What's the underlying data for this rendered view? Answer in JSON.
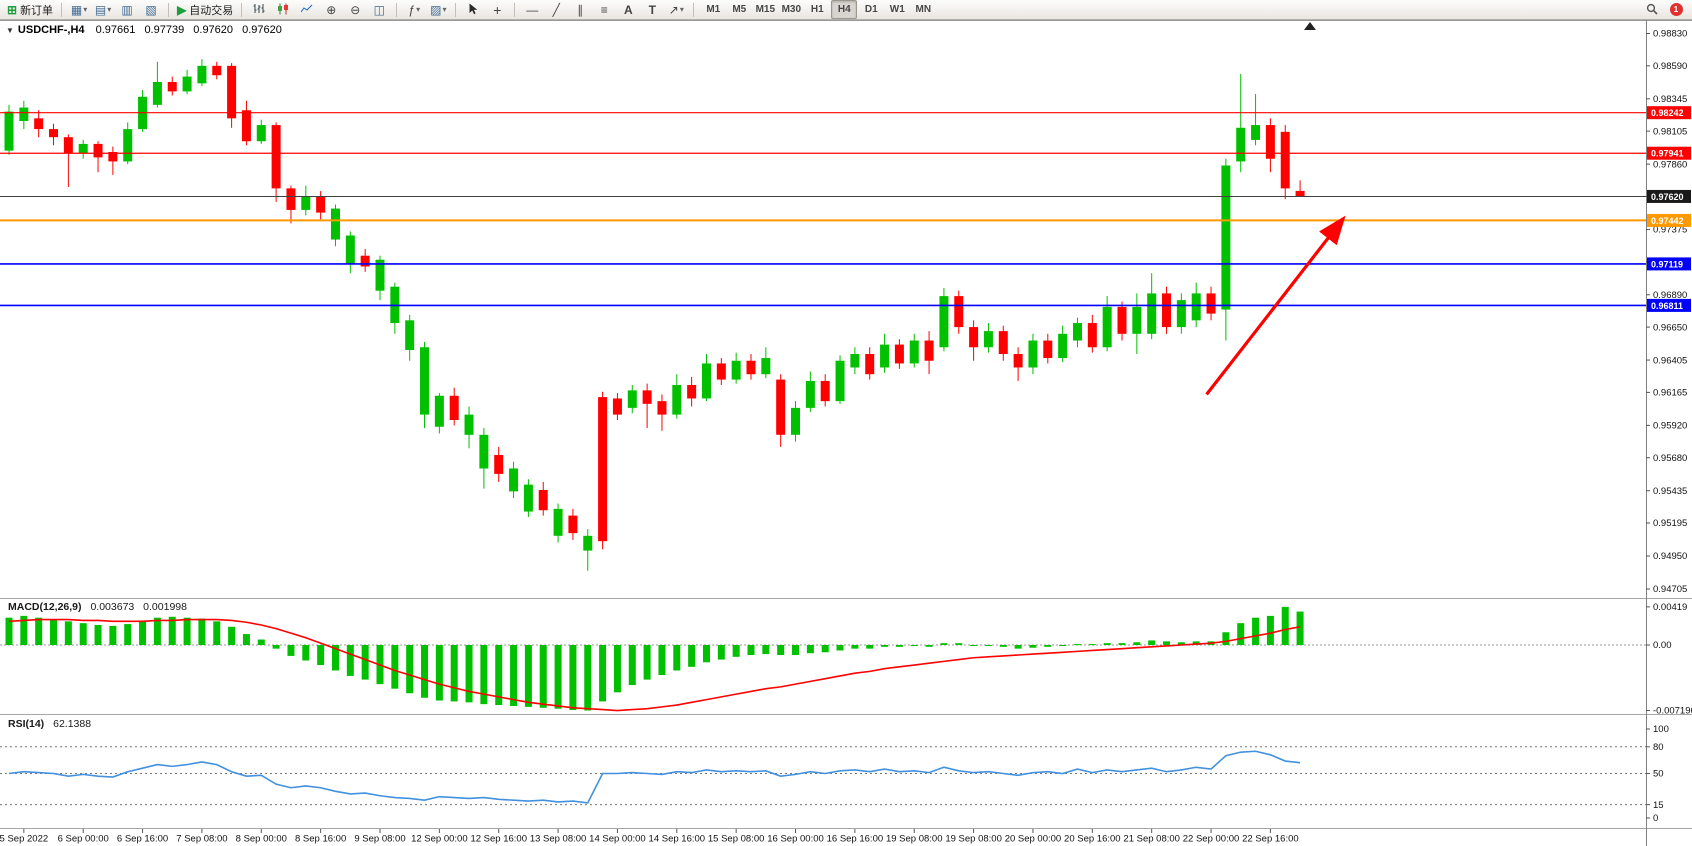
{
  "toolbar": {
    "new_order_label": "新订单",
    "autotrading_label": "自动交易",
    "timeframes": [
      "M1",
      "M5",
      "M15",
      "M30",
      "H1",
      "H4",
      "D1",
      "W1",
      "MN"
    ],
    "active_timeframe": "H4",
    "notification_count": "1"
  },
  "chart": {
    "title": "USDCHF-,H4",
    "ohlc": {
      "open": "0.97661",
      "high": "0.97739",
      "low": "0.97620",
      "close": "0.97620"
    }
  },
  "indicators": {
    "macd": {
      "label": "MACD(12,26,9)",
      "value_main": "0.003673",
      "value_signal": "0.001998"
    },
    "rsi": {
      "label": "RSI(14)",
      "value": "62.1388"
    }
  },
  "colors": {
    "candle_up": "#00C000",
    "candle_down": "#FF0000",
    "macd_histogram": "#00C000",
    "macd_signal": "#FF0000",
    "rsi_line": "#4191DF",
    "arrow": "#FF0000",
    "level_red": "#FF0000",
    "level_orange": "#FF9900",
    "level_blue": "#0000FF",
    "current_price_line": "#404040"
  },
  "chart_data": {
    "type": "candlestick",
    "symbol": "USDCHF-",
    "period": "H4",
    "price_axis": {
      "max": 0.9883,
      "min": 0.94705,
      "labels": [
        "0.98830",
        "0.98590",
        "0.98345",
        "0.98105",
        "0.97860",
        "0.97620",
        "0.97375",
        "0.97135",
        "0.96890",
        "0.96650",
        "0.96405",
        "0.96165",
        "0.95920",
        "0.95680",
        "0.95435",
        "0.95195",
        "0.94950",
        "0.94705"
      ]
    },
    "time_axis": {
      "first_label_bar_index": 1,
      "label_every_n_bars": 4,
      "labels": [
        "5 Sep 2022",
        "6 Sep 00:00",
        "6 Sep 16:00",
        "7 Sep 08:00",
        "8 Sep 00:00",
        "8 Sep 16:00",
        "9 Sep 08:00",
        "12 Sep 00:00",
        "12 Sep 16:00",
        "13 Sep 08:00",
        "14 Sep 00:00",
        "14 Sep 16:00",
        "15 Sep 08:00",
        "16 Sep 00:00",
        "16 Sep 16:00",
        "19 Sep 08:00",
        "19 Sep 08:00",
        "20 Sep 00:00",
        "20 Sep 16:00",
        "21 Sep 08:00",
        "22 Sep 00:00",
        "22 Sep 16:00"
      ]
    },
    "candles": [
      [
        0.9825,
        0.9796,
        0.983,
        0.9793,
        "g"
      ],
      [
        0.9828,
        0.9818,
        0.9833,
        0.9812,
        "g"
      ],
      [
        0.982,
        0.9812,
        0.9826,
        0.9806,
        "r"
      ],
      [
        0.9812,
        0.9806,
        0.9816,
        0.98,
        "r"
      ],
      [
        0.9806,
        0.9794,
        0.9808,
        0.9769,
        "r"
      ],
      [
        0.9801,
        0.9794,
        0.9804,
        0.979,
        "g"
      ],
      [
        0.9801,
        0.9791,
        0.9803,
        0.978,
        "r"
      ],
      [
        0.9795,
        0.9788,
        0.9799,
        0.9778,
        "r"
      ],
      [
        0.9812,
        0.9788,
        0.9817,
        0.9786,
        "g"
      ],
      [
        0.9836,
        0.9812,
        0.9841,
        0.981,
        "g"
      ],
      [
        0.9847,
        0.983,
        0.9862,
        0.9828,
        "g"
      ],
      [
        0.9847,
        0.984,
        0.9851,
        0.9837,
        "r"
      ],
      [
        0.9851,
        0.984,
        0.9856,
        0.9838,
        "g"
      ],
      [
        0.9859,
        0.9846,
        0.9864,
        0.9844,
        "g"
      ],
      [
        0.9859,
        0.9852,
        0.9862,
        0.9849,
        "r"
      ],
      [
        0.9859,
        0.982,
        0.9861,
        0.9813,
        "r"
      ],
      [
        0.9826,
        0.9803,
        0.9833,
        0.98,
        "r"
      ],
      [
        0.9815,
        0.9803,
        0.9819,
        0.9801,
        "g"
      ],
      [
        0.9815,
        0.9768,
        0.9817,
        0.9758,
        "r"
      ],
      [
        0.9768,
        0.9752,
        0.977,
        0.9742,
        "r"
      ],
      [
        0.9762,
        0.9752,
        0.977,
        0.9748,
        "g"
      ],
      [
        0.9762,
        0.975,
        0.9766,
        0.9745,
        "r"
      ],
      [
        0.9753,
        0.973,
        0.9756,
        0.9725,
        "g"
      ],
      [
        0.9733,
        0.9712,
        0.9736,
        0.9705,
        "g"
      ],
      [
        0.9718,
        0.971,
        0.9723,
        0.9706,
        "r"
      ],
      [
        0.9715,
        0.9692,
        0.9718,
        0.9685,
        "g"
      ],
      [
        0.9695,
        0.9668,
        0.9698,
        0.966,
        "g"
      ],
      [
        0.967,
        0.9648,
        0.9674,
        0.964,
        "g"
      ],
      [
        0.965,
        0.96,
        0.9654,
        0.959,
        "g"
      ],
      [
        0.9614,
        0.9591,
        0.9616,
        0.9586,
        "g"
      ],
      [
        0.9614,
        0.9596,
        0.962,
        0.9592,
        "r"
      ],
      [
        0.96,
        0.9585,
        0.9606,
        0.9575,
        "g"
      ],
      [
        0.9585,
        0.956,
        0.959,
        0.9545,
        "g"
      ],
      [
        0.957,
        0.9556,
        0.9576,
        0.955,
        "r"
      ],
      [
        0.956,
        0.9543,
        0.9565,
        0.9538,
        "g"
      ],
      [
        0.9548,
        0.9528,
        0.9552,
        0.9524,
        "g"
      ],
      [
        0.9544,
        0.9529,
        0.955,
        0.9525,
        "r"
      ],
      [
        0.953,
        0.951,
        0.9534,
        0.9505,
        "g"
      ],
      [
        0.9525,
        0.9512,
        0.953,
        0.9507,
        "r"
      ],
      [
        0.951,
        0.9499,
        0.9515,
        0.9484,
        "g"
      ],
      [
        0.9613,
        0.9506,
        0.9617,
        0.95,
        "r"
      ],
      [
        0.9612,
        0.96,
        0.9616,
        0.9596,
        "r"
      ],
      [
        0.9618,
        0.9605,
        0.9622,
        0.9601,
        "g"
      ],
      [
        0.9618,
        0.9608,
        0.9623,
        0.959,
        "r"
      ],
      [
        0.961,
        0.96,
        0.9615,
        0.9588,
        "r"
      ],
      [
        0.9622,
        0.96,
        0.963,
        0.9597,
        "g"
      ],
      [
        0.9622,
        0.9612,
        0.9628,
        0.9606,
        "r"
      ],
      [
        0.9638,
        0.9612,
        0.9645,
        0.961,
        "g"
      ],
      [
        0.9638,
        0.9626,
        0.9642,
        0.9622,
        "r"
      ],
      [
        0.964,
        0.9626,
        0.9646,
        0.9623,
        "g"
      ],
      [
        0.964,
        0.963,
        0.9645,
        0.9626,
        "r"
      ],
      [
        0.9642,
        0.963,
        0.965,
        0.9627,
        "g"
      ],
      [
        0.9626,
        0.9585,
        0.963,
        0.9576,
        "r"
      ],
      [
        0.9605,
        0.9585,
        0.961,
        0.958,
        "g"
      ],
      [
        0.9625,
        0.9605,
        0.9632,
        0.9602,
        "g"
      ],
      [
        0.9625,
        0.961,
        0.963,
        0.9606,
        "r"
      ],
      [
        0.964,
        0.961,
        0.9644,
        0.9608,
        "g"
      ],
      [
        0.9645,
        0.9635,
        0.965,
        0.963,
        "g"
      ],
      [
        0.9645,
        0.963,
        0.965,
        0.9626,
        "r"
      ],
      [
        0.9652,
        0.9635,
        0.966,
        0.9631,
        "g"
      ],
      [
        0.9652,
        0.9638,
        0.9656,
        0.9634,
        "r"
      ],
      [
        0.9655,
        0.9638,
        0.966,
        0.9635,
        "g"
      ],
      [
        0.9655,
        0.964,
        0.9662,
        0.963,
        "r"
      ],
      [
        0.9688,
        0.965,
        0.9694,
        0.9647,
        "g"
      ],
      [
        0.9688,
        0.9665,
        0.9692,
        0.966,
        "r"
      ],
      [
        0.9665,
        0.965,
        0.967,
        0.964,
        "r"
      ],
      [
        0.9662,
        0.965,
        0.9668,
        0.9646,
        "g"
      ],
      [
        0.9662,
        0.9645,
        0.9666,
        0.964,
        "r"
      ],
      [
        0.9645,
        0.9635,
        0.965,
        0.9625,
        "r"
      ],
      [
        0.9655,
        0.9635,
        0.966,
        0.963,
        "g"
      ],
      [
        0.9655,
        0.9642,
        0.966,
        0.9638,
        "r"
      ],
      [
        0.966,
        0.9642,
        0.9666,
        0.9639,
        "g"
      ],
      [
        0.9668,
        0.9655,
        0.9672,
        0.965,
        "g"
      ],
      [
        0.9668,
        0.965,
        0.9674,
        0.9646,
        "r"
      ],
      [
        0.968,
        0.965,
        0.9688,
        0.9647,
        "g"
      ],
      [
        0.968,
        0.966,
        0.9684,
        0.9655,
        "r"
      ],
      [
        0.968,
        0.966,
        0.969,
        0.9645,
        "g"
      ],
      [
        0.969,
        0.966,
        0.9705,
        0.9656,
        "g"
      ],
      [
        0.969,
        0.9665,
        0.9695,
        0.966,
        "r"
      ],
      [
        0.9685,
        0.9665,
        0.969,
        0.966,
        "g"
      ],
      [
        0.969,
        0.967,
        0.9698,
        0.9665,
        "g"
      ],
      [
        0.969,
        0.9675,
        0.9695,
        0.967,
        "r"
      ],
      [
        0.9785,
        0.9678,
        0.979,
        0.9655,
        "g"
      ],
      [
        0.9813,
        0.9788,
        0.9853,
        0.978,
        "g"
      ],
      [
        0.9815,
        0.9804,
        0.9838,
        0.98,
        "g"
      ],
      [
        0.9815,
        0.979,
        0.982,
        0.978,
        "r"
      ],
      [
        0.981,
        0.9768,
        0.9815,
        0.976,
        "r"
      ],
      [
        0.97661,
        0.9762,
        0.97739,
        0.9762,
        "r"
      ]
    ],
    "hlines": [
      {
        "price": 0.98242,
        "label": "0.98242",
        "color": "#FF0000",
        "badge": "#FF0000",
        "width": 1.2
      },
      {
        "price": 0.97941,
        "label": "0.97941",
        "color": "#FF0000",
        "badge": "#FF0000",
        "width": 1.2
      },
      {
        "price": 0.9762,
        "label": "0.97620",
        "color": "#404040",
        "badge": "#1a1a1a",
        "width": 1
      },
      {
        "price": 0.97442,
        "label": "0.97442",
        "color": "#FF9900",
        "badge": "#FF9900",
        "width": 2
      },
      {
        "price": 0.97119,
        "label": "0.97119",
        "color": "#0000FF",
        "badge": "#0000FF",
        "width": 1.6
      },
      {
        "price": 0.96811,
        "label": "0.96811",
        "color": "#0000FF",
        "badge": "#0000FF",
        "width": 1.6
      }
    ],
    "arrow": {
      "bar_from": 80.7,
      "price_from": 0.9615,
      "bar_to": 89.8,
      "price_to": 0.9744,
      "color": "#FF0000"
    },
    "macd": {
      "scale_labels": [
        "0.00419",
        "0.00",
        "-0.007196"
      ],
      "scale_values": [
        0.00419,
        0,
        -0.007196
      ],
      "histogram": [
        0.003,
        0.0032,
        0.003,
        0.0028,
        0.0026,
        0.0024,
        0.0022,
        0.0021,
        0.0023,
        0.0027,
        0.003,
        0.0031,
        0.003,
        0.0029,
        0.0026,
        0.002,
        0.0012,
        0.0006,
        -0.0004,
        -0.0012,
        -0.0017,
        -0.0022,
        -0.0028,
        -0.0034,
        -0.0038,
        -0.0043,
        -0.0048,
        -0.0053,
        -0.0058,
        -0.0061,
        -0.0062,
        -0.0063,
        -0.0065,
        -0.0066,
        -0.0067,
        -0.0068,
        -0.0069,
        -0.007,
        -0.00715,
        -0.007196,
        -0.0062,
        -0.0052,
        -0.0044,
        -0.0038,
        -0.0033,
        -0.0028,
        -0.0024,
        -0.0019,
        -0.0016,
        -0.0013,
        -0.0011,
        -0.001,
        -0.0011,
        -0.0011,
        -0.0009,
        -0.0008,
        -0.0006,
        -0.0004,
        -0.0004,
        -0.0002,
        -0.0002,
        -0.0001,
        -0.0002,
        0.0002,
        0.0002,
        0,
        -0.0001,
        -0.0002,
        -0.0004,
        -0.0003,
        -0.0002,
        -0.0001,
        0.0001,
        0.0001,
        0.0002,
        0.0002,
        0.0003,
        0.0005,
        0.0004,
        0.0003,
        0.0004,
        0.0004,
        0.0014,
        0.0024,
        0.003,
        0.0032,
        0.00419,
        0.003673
      ],
      "signal": [
        0.0026,
        0.0027,
        0.0028,
        0.0028,
        0.0028,
        0.0027,
        0.0027,
        0.0026,
        0.0026,
        0.0026,
        0.0027,
        0.0027,
        0.0028,
        0.0028,
        0.0028,
        0.0027,
        0.0025,
        0.0022,
        0.0018,
        0.0013,
        0.0008,
        0.0002,
        -0.0004,
        -0.001,
        -0.0016,
        -0.0022,
        -0.0028,
        -0.0033,
        -0.0038,
        -0.0043,
        -0.0047,
        -0.0051,
        -0.0054,
        -0.0057,
        -0.006,
        -0.0063,
        -0.0065,
        -0.0067,
        -0.0069,
        -0.007,
        -0.0071,
        -0.0072,
        -0.0071,
        -0.007,
        -0.0068,
        -0.0066,
        -0.0063,
        -0.006,
        -0.0057,
        -0.0054,
        -0.0051,
        -0.0048,
        -0.0046,
        -0.0043,
        -0.004,
        -0.0037,
        -0.0034,
        -0.0031,
        -0.0029,
        -0.0026,
        -0.0024,
        -0.0022,
        -0.002,
        -0.0018,
        -0.0016,
        -0.0014,
        -0.0013,
        -0.0012,
        -0.0011,
        -0.001,
        -0.0009,
        -0.0008,
        -0.0007,
        -0.0006,
        -0.0005,
        -0.0004,
        -0.0003,
        -0.0002,
        -0.0001,
        0,
        0.0001,
        0.0002,
        0.0004,
        0.0007,
        0.001,
        0.0013,
        0.0017,
        0.001998
      ]
    },
    "rsi": {
      "levels": [
        80,
        50,
        15
      ],
      "scale_labels": [
        "100",
        "80",
        "50",
        "15",
        "0"
      ],
      "scale_values": [
        100,
        80,
        50,
        15,
        0
      ],
      "values": [
        50,
        52,
        51,
        50,
        47,
        49,
        47,
        46,
        52,
        56,
        60,
        58,
        60,
        63,
        60,
        52,
        47,
        48,
        38,
        34,
        36,
        34,
        30,
        27,
        28,
        25,
        23,
        22,
        20,
        24,
        23,
        22,
        23,
        21,
        20,
        19,
        20,
        18,
        19,
        17,
        50,
        50,
        51,
        50,
        49,
        52,
        51,
        54,
        52,
        53,
        52,
        53,
        47,
        49,
        52,
        50,
        53,
        54,
        52,
        55,
        52,
        53,
        51,
        57,
        53,
        51,
        52,
        50,
        48,
        51,
        52,
        50,
        55,
        51,
        54,
        52,
        54,
        56,
        52,
        54,
        57,
        55,
        70,
        74,
        75,
        71,
        64,
        62.14
      ]
    }
  }
}
